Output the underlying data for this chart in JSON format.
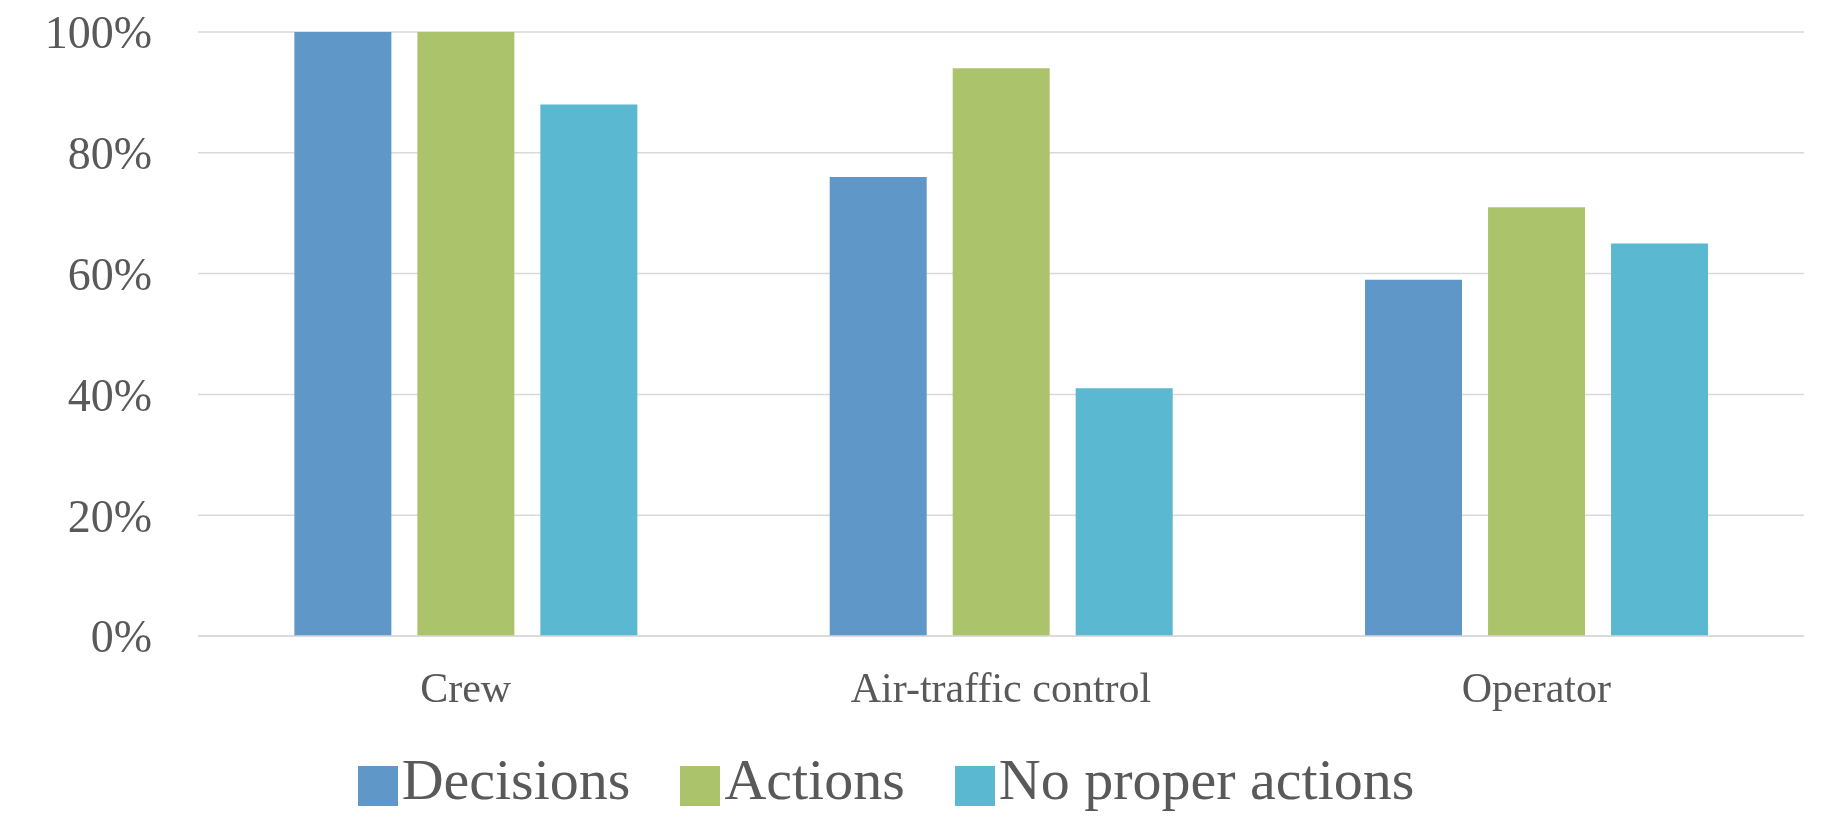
{
  "chart_data": {
    "type": "bar",
    "categories": [
      "Crew",
      "Air-traffic control",
      "Operator"
    ],
    "series": [
      {
        "name": "Decisions",
        "color": "#5f97c9",
        "values": [
          100,
          76,
          59
        ]
      },
      {
        "name": "Actions",
        "color": "#abc46b",
        "values": [
          100,
          94,
          71
        ]
      },
      {
        "name": "No proper actions",
        "color": "#5bb8d1",
        "values": [
          88,
          41,
          65
        ]
      }
    ],
    "ylim": [
      0,
      100
    ],
    "yticks": [
      {
        "value": 0,
        "label": "0%"
      },
      {
        "value": 20,
        "label": "20%"
      },
      {
        "value": 40,
        "label": "40%"
      },
      {
        "value": 60,
        "label": "60%"
      },
      {
        "value": 80,
        "label": "80%"
      },
      {
        "value": 100,
        "label": "100%"
      }
    ],
    "grid": "y",
    "legend": "bottom"
  }
}
